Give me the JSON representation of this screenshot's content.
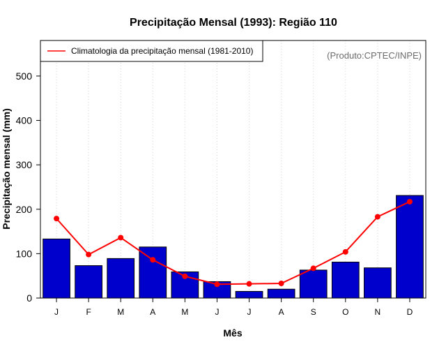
{
  "chart_data": {
    "type": "bar",
    "title": "Precipitação Mensal (1993): Região 110",
    "xlabel": "Mês",
    "ylabel": "Precipitação mensal (mm)",
    "ylim": [
      0,
      580
    ],
    "yticks": [
      0,
      100,
      200,
      300,
      400,
      500
    ],
    "categories": [
      "J",
      "F",
      "M",
      "A",
      "M",
      "J",
      "J",
      "A",
      "S",
      "O",
      "N",
      "D"
    ],
    "series": [
      {
        "name": "1993",
        "type": "bar",
        "color": "#0000cd",
        "values": [
          133,
          73,
          89,
          115,
          59,
          37,
          15,
          20,
          63,
          81,
          68,
          231
        ]
      },
      {
        "name": "Climatologia da precipitação mensal (1981-2010)",
        "type": "line",
        "color": "#ff0000",
        "values": [
          179,
          98,
          136,
          86,
          49,
          31,
          32,
          33,
          67,
          104,
          183,
          217
        ]
      }
    ],
    "legend": {
      "label": "Climatologia da precipitação mensal (1981-2010)",
      "position": "top-left"
    },
    "annotation": "(Produto:CPTEC/INPE)",
    "grid": "vertical-dotted"
  }
}
